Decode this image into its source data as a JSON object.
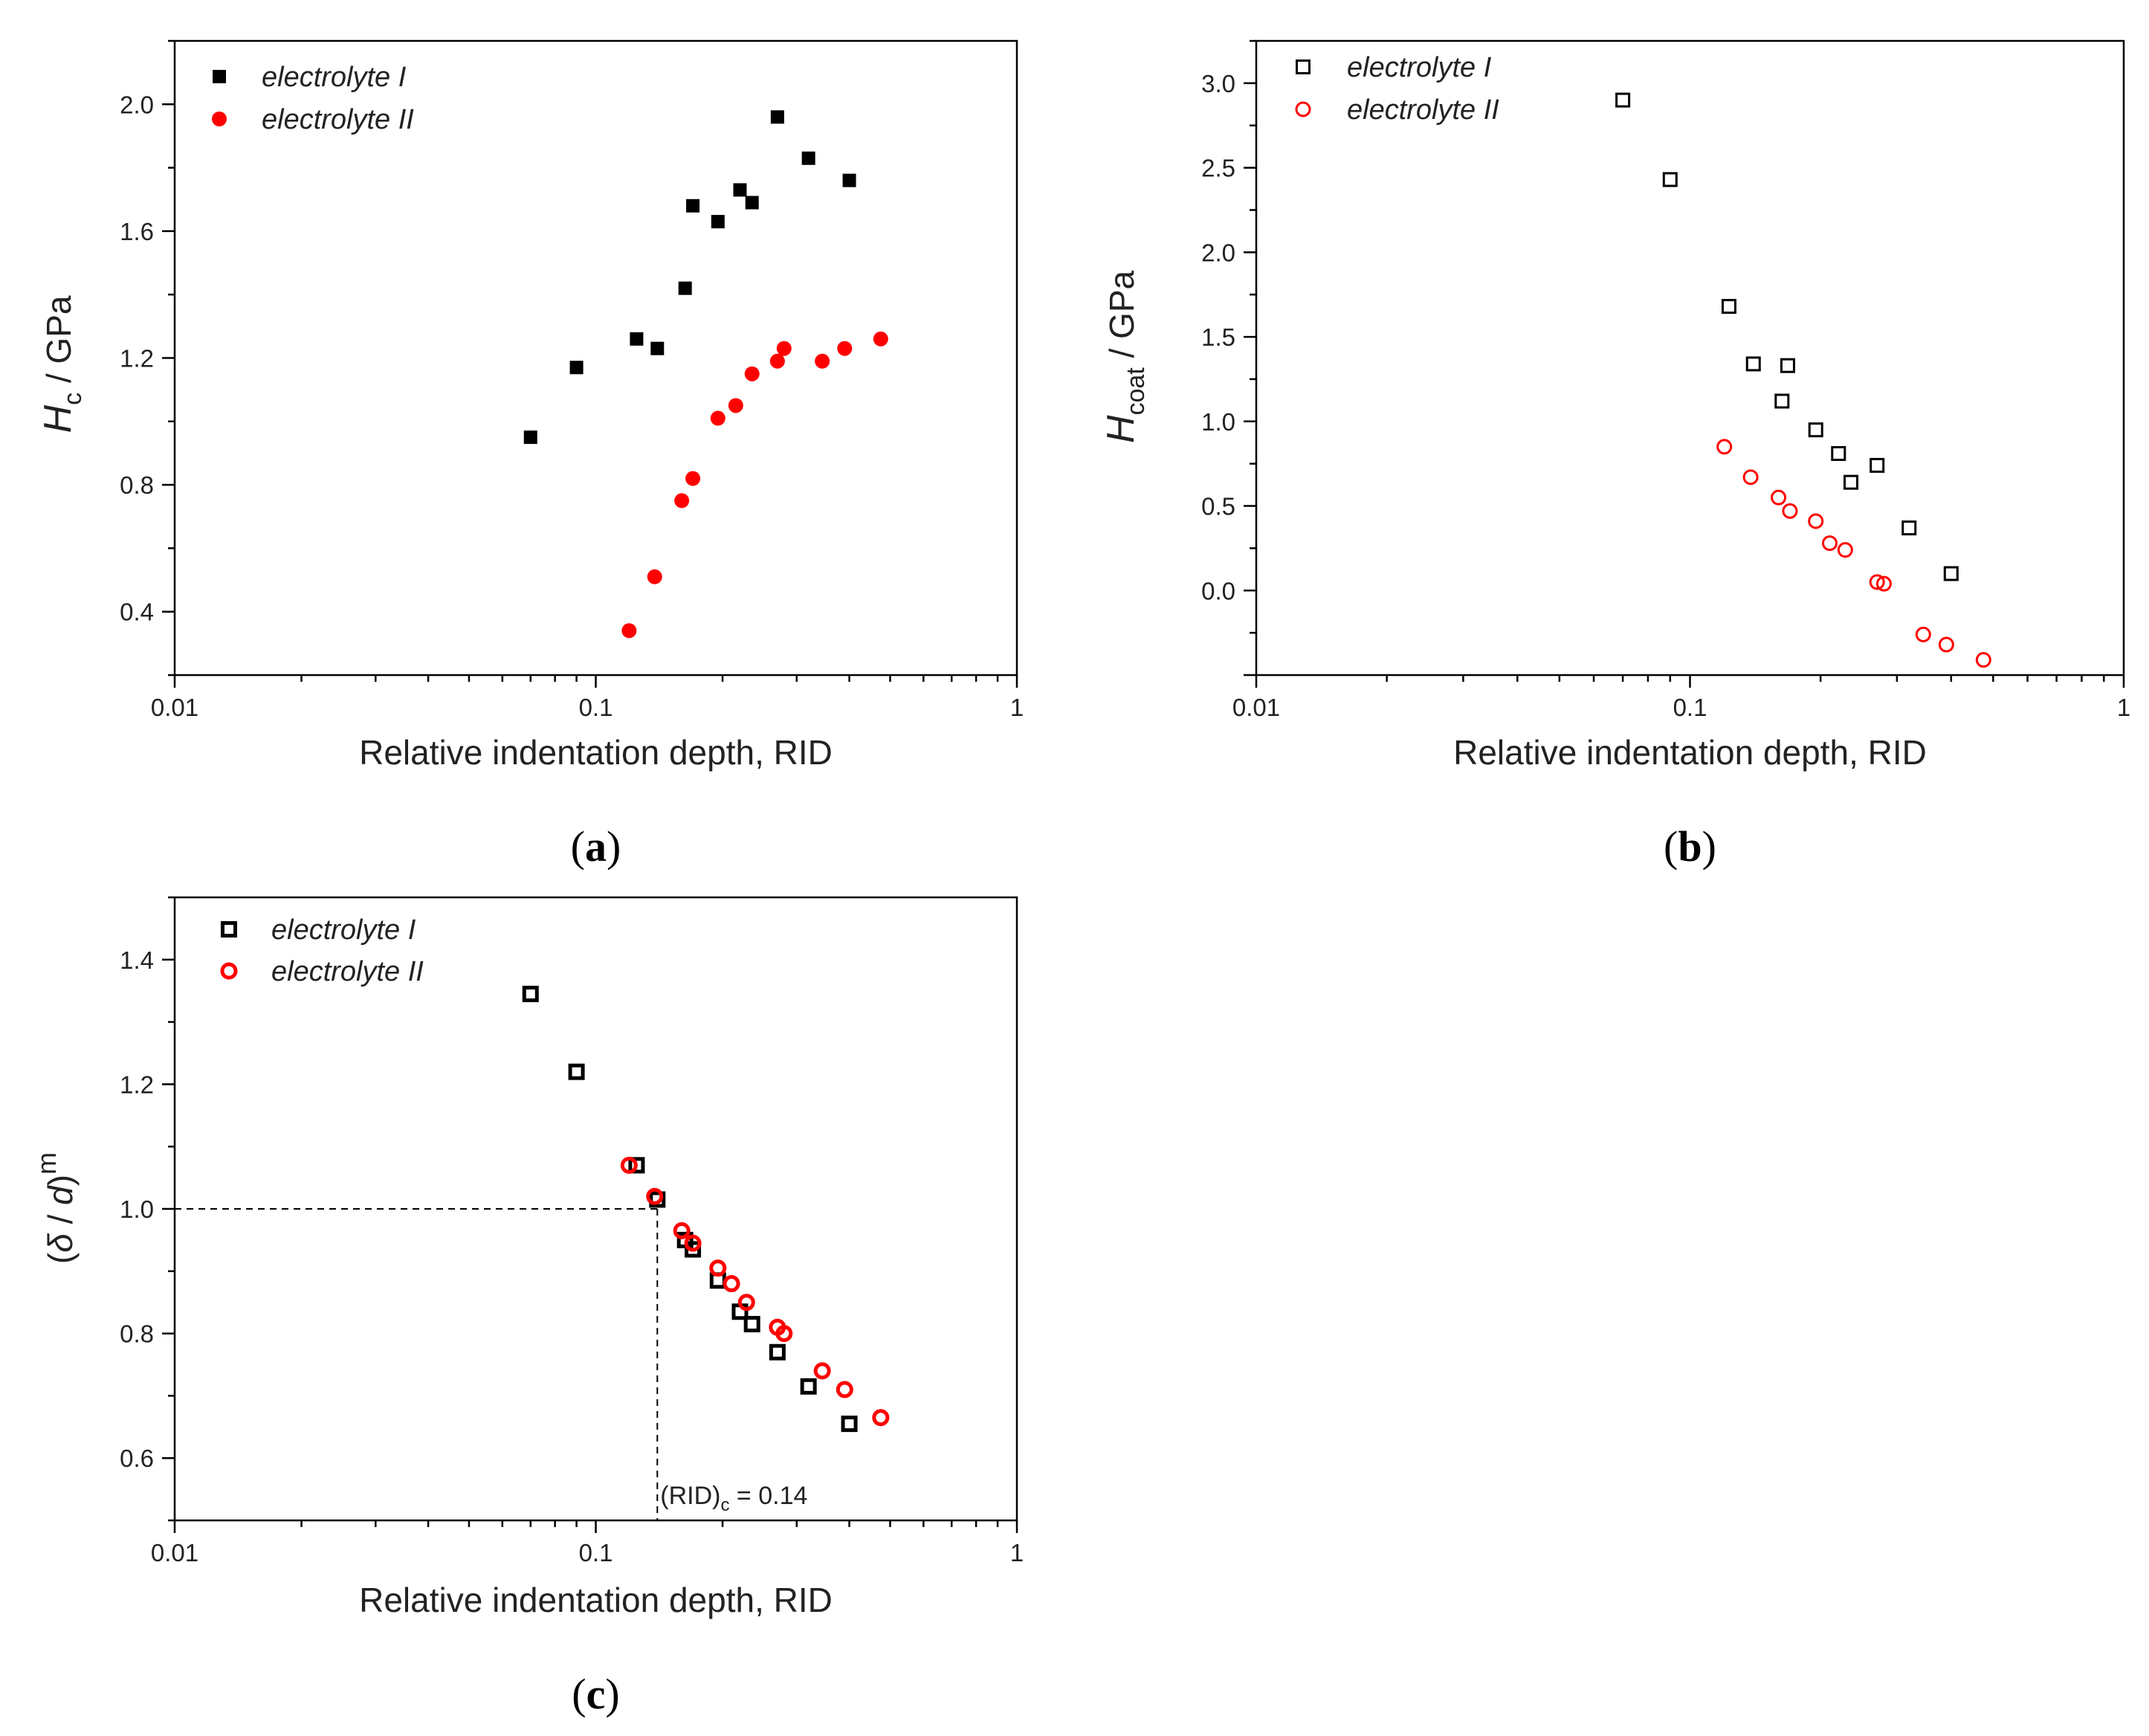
{
  "chart_data": [
    {
      "id": "a",
      "type": "scatter",
      "panel_label": "a",
      "xscale": "log",
      "xlim": [
        0.01,
        1
      ],
      "ylim": [
        0.2,
        2.2
      ],
      "xticks": [
        0.01,
        0.1,
        1
      ],
      "xtick_labels": [
        "0.01",
        "0.1",
        "1"
      ],
      "yticks": [
        0.4,
        0.8,
        1.2,
        1.6,
        2.0
      ],
      "ytick_labels": [
        "0.4",
        "0.8",
        "1.2",
        "1.6",
        "2.0"
      ],
      "xlabel": "Relative indentation depth, RID",
      "ylabel": {
        "main": "H",
        "sub": "c",
        "unit": " / GPa"
      },
      "legend_position": "top-left",
      "series": [
        {
          "name": "electrolyte I",
          "marker": "square-filled",
          "color": "#000000",
          "x": [
            0.07,
            0.09,
            0.125,
            0.14,
            0.163,
            0.17,
            0.195,
            0.22,
            0.235,
            0.27,
            0.32,
            0.4
          ],
          "y": [
            0.95,
            1.17,
            1.26,
            1.23,
            1.42,
            1.68,
            1.63,
            1.73,
            1.69,
            1.96,
            1.83,
            1.76
          ]
        },
        {
          "name": "electrolyte II",
          "marker": "circle-filled",
          "color": "#ff0000",
          "x": [
            0.12,
            0.138,
            0.16,
            0.17,
            0.195,
            0.215,
            0.235,
            0.27,
            0.28,
            0.345,
            0.39,
            0.475
          ],
          "y": [
            0.34,
            0.51,
            0.75,
            0.82,
            1.01,
            1.05,
            1.15,
            1.19,
            1.23,
            1.19,
            1.23,
            1.26
          ]
        }
      ]
    },
    {
      "id": "b",
      "type": "scatter",
      "panel_label": "b",
      "xscale": "log",
      "xlim": [
        0.01,
        1
      ],
      "ylim": [
        -0.5,
        3.25
      ],
      "xticks": [
        0.01,
        0.1,
        1
      ],
      "xtick_labels": [
        "0.01",
        "0.1",
        "1"
      ],
      "yticks": [
        0.0,
        0.5,
        1.0,
        1.5,
        2.0,
        2.5,
        3.0
      ],
      "ytick_labels": [
        "0.0",
        "0.5",
        "1.0",
        "1.5",
        "2.0",
        "2.5",
        "3.0"
      ],
      "xlabel": "Relative indentation depth, RID",
      "ylabel": {
        "main": "H",
        "sub": "coat",
        "unit": " / GPa"
      },
      "legend_position": "top-left",
      "series": [
        {
          "name": "electrolyte I",
          "marker": "square-open",
          "color": "#000000",
          "x": [
            0.07,
            0.09,
            0.123,
            0.14,
            0.163,
            0.168,
            0.195,
            0.22,
            0.235,
            0.27,
            0.32,
            0.4
          ],
          "y": [
            2.9,
            2.43,
            1.68,
            1.34,
            1.12,
            1.33,
            0.95,
            0.81,
            0.64,
            0.74,
            0.37,
            0.1
          ]
        },
        {
          "name": "electrolyte II",
          "marker": "circle-open",
          "color": "#ff0000",
          "x": [
            0.12,
            0.138,
            0.16,
            0.17,
            0.195,
            0.21,
            0.228,
            0.27,
            0.28,
            0.345,
            0.39,
            0.475
          ],
          "y": [
            0.85,
            0.67,
            0.55,
            0.47,
            0.41,
            0.28,
            0.24,
            0.05,
            0.04,
            -0.26,
            -0.32,
            -0.41
          ]
        }
      ]
    },
    {
      "id": "c",
      "type": "scatter",
      "panel_label": "c",
      "xscale": "log",
      "xlim": [
        0.01,
        1
      ],
      "ylim": [
        0.5,
        1.5
      ],
      "xticks": [
        0.01,
        0.1,
        1
      ],
      "xtick_labels": [
        "0.01",
        "0.1",
        "1"
      ],
      "yticks": [
        0.6,
        0.8,
        1.0,
        1.2,
        1.4
      ],
      "ytick_labels": [
        "0.6",
        "0.8",
        "1.0",
        "1.2",
        "1.4"
      ],
      "xlabel": "Relative indentation depth, RID",
      "ylabel": {
        "open": "(",
        "delta": "δ",
        "sep": " / ",
        "d": "d",
        "close": ")",
        "sup": "m"
      },
      "legend_position": "top-left",
      "reference_lines": {
        "y": 1.0,
        "x": 0.14
      },
      "annotation": {
        "main": "(RID)",
        "sub": "c",
        "rest": " = 0.14"
      },
      "series": [
        {
          "name": "electrolyte I",
          "marker": "square-open-thick",
          "color": "#000000",
          "x": [
            0.07,
            0.09,
            0.125,
            0.14,
            0.163,
            0.17,
            0.195,
            0.22,
            0.235,
            0.27,
            0.32,
            0.4
          ],
          "y": [
            1.345,
            1.22,
            1.07,
            1.015,
            0.95,
            0.935,
            0.885,
            0.835,
            0.815,
            0.77,
            0.715,
            0.655
          ]
        },
        {
          "name": "electrolyte II",
          "marker": "circle-open-thick",
          "color": "#ff0000",
          "x": [
            0.12,
            0.138,
            0.16,
            0.17,
            0.195,
            0.21,
            0.228,
            0.27,
            0.28,
            0.345,
            0.39,
            0.475
          ],
          "y": [
            1.07,
            1.02,
            0.965,
            0.945,
            0.905,
            0.88,
            0.85,
            0.81,
            0.8,
            0.74,
            0.71,
            0.665
          ]
        }
      ]
    }
  ]
}
